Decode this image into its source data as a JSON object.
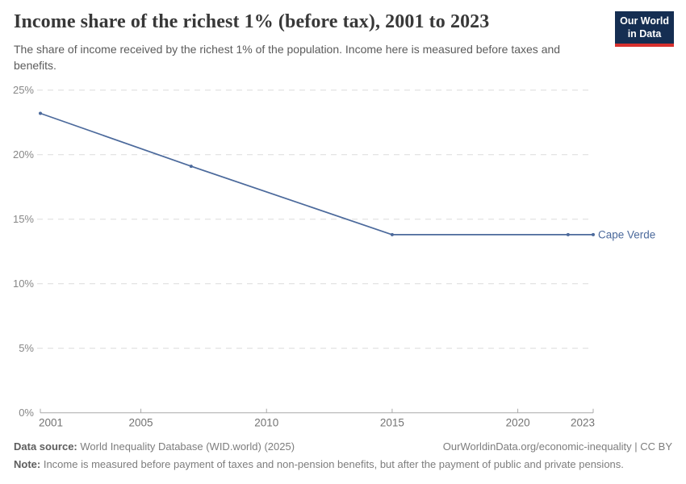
{
  "logo": {
    "line1": "Our World",
    "line2": "in Data"
  },
  "chart_data": {
    "type": "line",
    "title": "Income share of the richest 1% (before tax), 2001 to 2023",
    "subtitle": "The share of income received by the richest 1% of the population. Income here is measured before taxes and benefits.",
    "x": [
      2001,
      2007,
      2015,
      2022,
      2023
    ],
    "series": [
      {
        "name": "Cape Verde",
        "color": "#4c6a9c",
        "values": [
          23.2,
          19.1,
          13.8,
          13.8,
          13.8
        ]
      }
    ],
    "xlim": [
      2001,
      2023
    ],
    "ylim": [
      0,
      25
    ],
    "xticks": [
      2001,
      2005,
      2010,
      2015,
      2020,
      2023
    ],
    "yticks": [
      0,
      5,
      10,
      15,
      20,
      25
    ],
    "ytick_suffix": "%",
    "grid": "horizontal-dashed",
    "legend_position": "end-of-line-label"
  },
  "footer": {
    "source_label": "Data source:",
    "source_text": "World Inequality Database (WID.world) (2025)",
    "link_text": "OurWorldinData.org/economic-inequality | CC BY",
    "note_label": "Note:",
    "note_text": "Income is measured before payment of taxes and non-pension benefits, but after the payment of public and private pensions."
  },
  "colors": {
    "logo_navy": "#152e52",
    "logo_red": "#d7312e",
    "series_blue": "#4c6a9c",
    "gridline": "#dcdcdc",
    "axis": "#a9a9a9"
  }
}
